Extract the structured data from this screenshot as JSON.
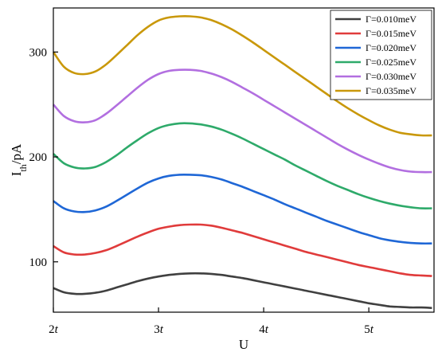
{
  "chart_data": {
    "type": "line",
    "title": "",
    "xlabel": "U",
    "ylabel_main": "I",
    "ylabel_sub": "th",
    "ylabel_unit": "/pA",
    "xlim": [
      2,
      5.62
    ],
    "ylim": [
      52,
      342
    ],
    "x_ticks": [
      {
        "value": 2,
        "num": "2",
        "sym": "t"
      },
      {
        "value": 3,
        "num": "3",
        "sym": "t"
      },
      {
        "value": 4,
        "num": "4",
        "sym": "t"
      },
      {
        "value": 5,
        "num": "5",
        "sym": "t"
      }
    ],
    "y_ticks": [
      100,
      200,
      300
    ],
    "grid": false,
    "legend_position": "top-right",
    "x": [
      2.0,
      2.1,
      2.2,
      2.3,
      2.4,
      2.5,
      2.6,
      2.7,
      2.8,
      2.9,
      3.0,
      3.1,
      3.2,
      3.3,
      3.4,
      3.5,
      3.6,
      3.7,
      3.8,
      3.9,
      4.0,
      4.1,
      4.2,
      4.3,
      4.4,
      4.5,
      4.6,
      4.7,
      4.8,
      4.9,
      5.0,
      5.1,
      5.2,
      5.3,
      5.4,
      5.5,
      5.6
    ],
    "series": [
      {
        "name": "Γ=0.010meV",
        "color": "#404040",
        "values": [
          75,
          71,
          69.5,
          69.5,
          70.5,
          72.5,
          75.5,
          78.5,
          81.5,
          84,
          86,
          87.5,
          88.5,
          89,
          89,
          88.5,
          87.5,
          86,
          84.5,
          82.5,
          80.5,
          78.5,
          76.5,
          74.5,
          72.5,
          70.5,
          68.5,
          66.5,
          64.5,
          62.5,
          60.5,
          59,
          57.5,
          57,
          56.5,
          56.5,
          56
        ]
      },
      {
        "name": "Γ=0.015meV",
        "color": "#e03b3b",
        "values": [
          115,
          109,
          107,
          107,
          108.5,
          111,
          115,
          119.5,
          124,
          128,
          131.5,
          133.5,
          135,
          135.5,
          135.5,
          134.5,
          132.5,
          130,
          127.5,
          124.5,
          121.5,
          118.5,
          115.5,
          112.5,
          109.5,
          107,
          104.5,
          102,
          99.5,
          97,
          95,
          93,
          91,
          89,
          87.5,
          87,
          86.5
        ]
      },
      {
        "name": "Γ=0.020meV",
        "color": "#1f67d6",
        "values": [
          158,
          151,
          148,
          147.5,
          149,
          152.5,
          158,
          164,
          170,
          175.5,
          179.5,
          182,
          183,
          183,
          182.5,
          181,
          178.5,
          175,
          171.5,
          167.5,
          163.5,
          159.5,
          155,
          151,
          147,
          143,
          139,
          135.5,
          132,
          128.5,
          125.5,
          122.5,
          120.5,
          119,
          118,
          117.5,
          117.5
        ]
      },
      {
        "name": "Γ=0.025meV",
        "color": "#2eaa6a",
        "values": [
          203,
          194,
          190,
          189,
          190.5,
          195,
          201.5,
          209,
          216,
          222.5,
          227.5,
          230.5,
          232,
          232,
          231,
          229,
          226,
          222,
          217.5,
          212.5,
          207.5,
          202.5,
          197.5,
          192,
          187,
          182,
          177,
          172.5,
          168.5,
          164.5,
          161,
          158,
          155.5,
          153.5,
          152,
          151,
          151
        ]
      },
      {
        "name": "Γ=0.030meV",
        "color": "#b26fe0",
        "values": [
          250,
          239,
          234,
          233,
          235,
          241,
          249,
          257.5,
          266,
          273.5,
          279,
          282,
          283,
          283,
          282,
          279.5,
          276,
          271.5,
          266,
          260.5,
          254.5,
          248.5,
          242.5,
          236.5,
          230.5,
          224.5,
          218.5,
          212.5,
          207,
          202,
          197.5,
          193.5,
          190,
          187.5,
          186,
          185.5,
          185.5
        ]
      },
      {
        "name": "Γ=0.035meV",
        "color": "#c9980a",
        "values": [
          300,
          286,
          280,
          279,
          281.5,
          288,
          297,
          306.5,
          316,
          324,
          330,
          333,
          334,
          334,
          333,
          330.5,
          326.5,
          321.5,
          315.5,
          309,
          302,
          295,
          288,
          281,
          274,
          267,
          260,
          253,
          246.5,
          240.5,
          235,
          230,
          226,
          223,
          221.5,
          220.5,
          220.5
        ]
      }
    ]
  }
}
